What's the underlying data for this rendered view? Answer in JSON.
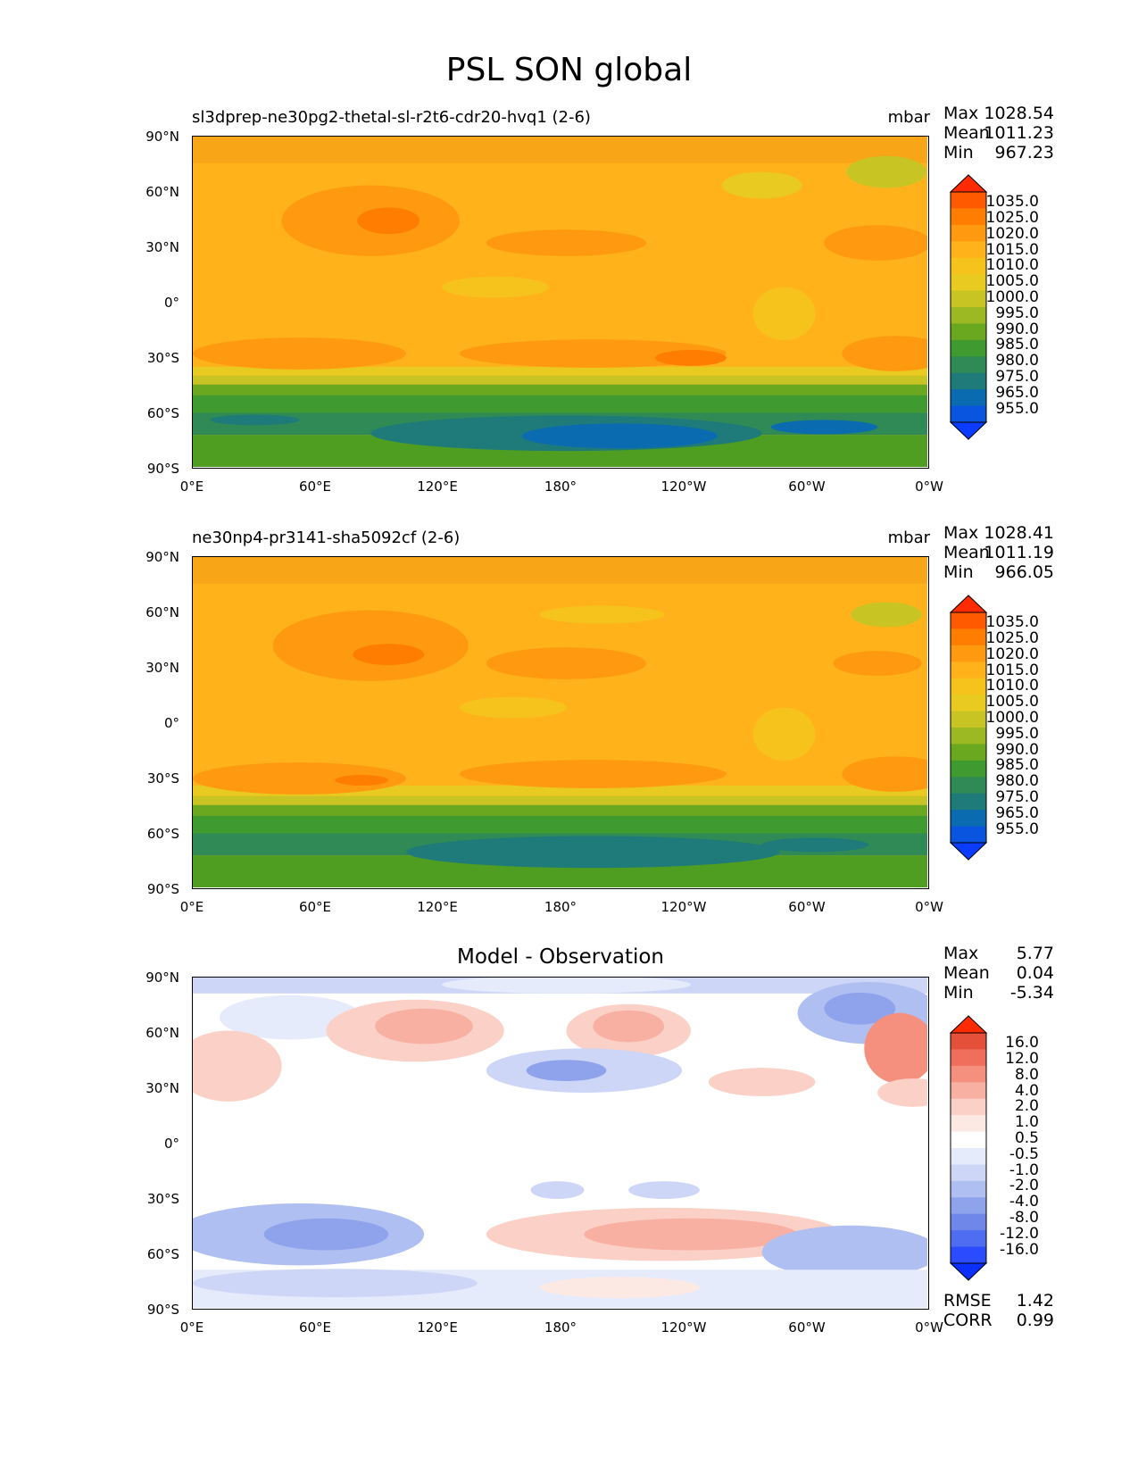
{
  "figure_title": "PSL SON global",
  "panels": [
    {
      "title": "sl3dprep-ne30pg2-thetal-sl-r2t6-cdr20-hvq1 (2-6)",
      "units": "mbar",
      "stats": {
        "max_label": "Max",
        "max": "1028.54",
        "mean_label": "Mean",
        "mean": "1011.23",
        "min_label": "Min",
        "min": "967.23"
      },
      "colorbar": [
        "1035.0",
        "1025.0",
        "1020.0",
        "1015.0",
        "1010.0",
        "1005.0",
        "1000.0",
        "995.0",
        "990.0",
        "985.0",
        "980.0",
        "975.0",
        "965.0",
        "955.0"
      ]
    },
    {
      "title": "ne30np4-pr3141-sha5092cf (2-6)",
      "units": "mbar",
      "stats": {
        "max_label": "Max",
        "max": "1028.41",
        "mean_label": "Mean",
        "mean": "1011.19",
        "min_label": "Min",
        "min": "966.05"
      },
      "colorbar": [
        "1035.0",
        "1025.0",
        "1020.0",
        "1015.0",
        "1010.0",
        "1005.0",
        "1000.0",
        "995.0",
        "990.0",
        "985.0",
        "980.0",
        "975.0",
        "965.0",
        "955.0"
      ]
    },
    {
      "title": "Model - Observation",
      "units": "",
      "stats": {
        "max_label": "Max",
        "max": "5.77",
        "mean_label": "Mean",
        "mean": "0.04",
        "min_label": "Min",
        "min": "-5.34"
      },
      "colorbar": [
        "16.0",
        "12.0",
        "8.0",
        "4.0",
        "2.0",
        "1.0",
        "0.5",
        "-0.5",
        "-1.0",
        "-2.0",
        "-4.0",
        "-8.0",
        "-12.0",
        "-16.0"
      ],
      "extra": {
        "rmse_label": "RMSE",
        "rmse": "1.42",
        "corr_label": "CORR",
        "corr": "0.99"
      }
    }
  ],
  "axes": {
    "lat_ticks": [
      "90°N",
      "60°N",
      "30°N",
      "0°",
      "30°S",
      "60°S",
      "90°S"
    ],
    "lon_ticks": [
      "0°E",
      "60°E",
      "120°E",
      "180°",
      "120°W",
      "60°W",
      "0°W"
    ]
  },
  "colormaps": {
    "psl": [
      "#ff2a00",
      "#ff5a00",
      "#ff7d00",
      "#ff9a10",
      "#ffb21a",
      "#f6c31c",
      "#e8ca20",
      "#c8c424",
      "#9cb823",
      "#6aa820",
      "#3f9a2f",
      "#2f8a55",
      "#1f7a7a",
      "#0a6bb0",
      "#0a55e0",
      "#0a3cff"
    ],
    "diff": [
      "#ff2a00",
      "#e5503a",
      "#ef6e5c",
      "#f5907e",
      "#f8b0a2",
      "#fbd0c6",
      "#fde9e4",
      "#ffffff",
      "#e6ebfb",
      "#cdd6f6",
      "#b0bff1",
      "#8ea3ec",
      "#6f87e8",
      "#4e6df0",
      "#2a4bff",
      "#0a2fff"
    ]
  }
}
